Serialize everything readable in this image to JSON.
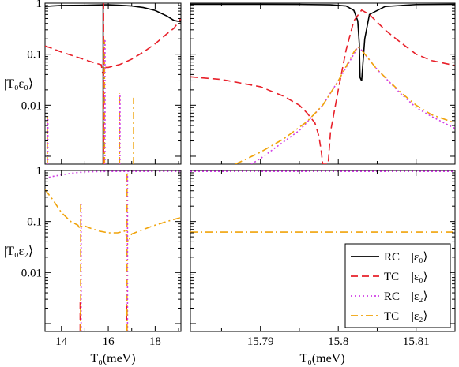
{
  "chart_data": {
    "type": "line",
    "layout": "2x2 panels",
    "ylabels": {
      "top": "|T₀ε₀⟩",
      "bottom": "|T₀ε₂⟩"
    },
    "xlabel": "T₀(meV)",
    "yscale": "log",
    "ylim": [
      0.0007,
      1.0
    ],
    "y_ticks": [
      {
        "value": 1,
        "label": "1"
      },
      {
        "value": 0.1,
        "label": "0.1"
      },
      {
        "value": 0.01,
        "label": "0.01"
      }
    ],
    "left_xlim": [
      13.3,
      19.1
    ],
    "left_x_ticks": [
      {
        "value": 14,
        "label": "14"
      },
      {
        "value": 16,
        "label": "16"
      },
      {
        "value": 18,
        "label": "18"
      }
    ],
    "right_xlim": [
      15.781,
      15.815
    ],
    "right_x_ticks": [
      {
        "value": 15.79,
        "label": "15.79"
      },
      {
        "value": 15.8,
        "label": "15.8"
      },
      {
        "value": 15.81,
        "label": "15.81"
      }
    ],
    "legend": {
      "placement": "bottom-right",
      "entries": [
        {
          "method": "RC",
          "state": "|ε₀⟩",
          "color": "#000000",
          "dash": "solid"
        },
        {
          "method": "TC",
          "state": "|ε₀⟩",
          "color": "#e8202a",
          "dash": "dashed"
        },
        {
          "method": "RC",
          "state": "|ε₂⟩",
          "color": "#d13fe6",
          "dash": "dotted"
        },
        {
          "method": "TC",
          "state": "|ε₂⟩",
          "color": "#f0a30a",
          "dash": "dashdot"
        }
      ]
    },
    "panels": [
      {
        "id": "top-left",
        "series": [
          {
            "legend_index": 0,
            "points": [
              [
                13.3,
                0.86
              ],
              [
                13.6,
                0.88
              ],
              [
                14.0,
                0.9
              ],
              [
                14.5,
                0.905
              ],
              [
                15.0,
                0.91
              ],
              [
                15.5,
                0.92
              ],
              [
                15.78,
                0.93
              ],
              [
                16.0,
                0.93
              ],
              [
                16.5,
                0.91
              ],
              [
                17.0,
                0.88
              ],
              [
                17.5,
                0.82
              ],
              [
                18.0,
                0.72
              ],
              [
                18.5,
                0.56
              ],
              [
                18.8,
                0.46
              ],
              [
                19.1,
                0.43
              ]
            ]
          },
          {
            "legend_index": 1,
            "points": [
              [
                13.3,
                0.145
              ],
              [
                13.6,
                0.13
              ],
              [
                14.0,
                0.11
              ],
              [
                14.5,
                0.093
              ],
              [
                15.0,
                0.078
              ],
              [
                15.4,
                0.068
              ],
              [
                15.7,
                0.062
              ],
              [
                15.75,
                0.045
              ],
              [
                15.79,
                0.04
              ],
              [
                15.83,
                0.055
              ],
              [
                16.0,
                0.055
              ],
              [
                16.5,
                0.063
              ],
              [
                17.0,
                0.08
              ],
              [
                17.5,
                0.11
              ],
              [
                18.0,
                0.16
              ],
              [
                18.5,
                0.25
              ],
              [
                18.8,
                0.32
              ],
              [
                19.1,
                0.5
              ]
            ]
          }
        ]
      },
      {
        "id": "top-right",
        "series": [
          {
            "legend_index": 0,
            "points": [
              [
                15.781,
                0.95
              ],
              [
                15.79,
                0.95
              ],
              [
                15.795,
                0.945
              ],
              [
                15.799,
                0.93
              ],
              [
                15.801,
                0.88
              ],
              [
                15.802,
                0.72
              ],
              [
                15.8025,
                0.45
              ],
              [
                15.8027,
                0.16
              ],
              [
                15.8028,
                0.035
              ],
              [
                15.803,
                0.03
              ],
              [
                15.8034,
                0.2
              ],
              [
                15.804,
                0.6
              ],
              [
                15.806,
                0.86
              ],
              [
                15.81,
                0.94
              ],
              [
                15.815,
                0.95
              ]
            ]
          },
          {
            "legend_index": 1,
            "points": [
              [
                15.781,
                0.036
              ],
              [
                15.785,
                0.032
              ],
              [
                15.79,
                0.023
              ],
              [
                15.793,
                0.015
              ],
              [
                15.795,
                0.01
              ],
              [
                15.796,
                0.007
              ],
              [
                15.797,
                0.0045
              ],
              [
                15.7975,
                0.0025
              ],
              [
                15.7978,
                0.0013
              ],
              [
                15.798,
                0.0007
              ],
              [
                15.7987,
                0.0007
              ],
              [
                15.799,
                0.003
              ],
              [
                15.8,
                0.02
              ],
              [
                15.801,
                0.12
              ],
              [
                15.802,
                0.45
              ],
              [
                15.803,
                0.73
              ],
              [
                15.804,
                0.6
              ],
              [
                15.806,
                0.3
              ],
              [
                15.808,
                0.17
              ],
              [
                15.81,
                0.1
              ],
              [
                15.812,
                0.075
              ],
              [
                15.815,
                0.06
              ]
            ]
          },
          {
            "legend_index": 2,
            "points": [
              [
                15.7888,
                0.0007
              ],
              [
                15.79,
                0.0009
              ],
              [
                15.792,
                0.0015
              ],
              [
                15.795,
                0.0032
              ],
              [
                15.798,
                0.01
              ],
              [
                15.8,
                0.03
              ],
              [
                15.802,
                0.1
              ],
              [
                15.8025,
                0.14
              ],
              [
                15.803,
                0.12
              ],
              [
                15.805,
                0.05
              ],
              [
                15.808,
                0.017
              ],
              [
                15.81,
                0.009
              ],
              [
                15.812,
                0.006
              ],
              [
                15.815,
                0.0035
              ]
            ]
          },
          {
            "legend_index": 3,
            "points": [
              [
                15.7868,
                0.0007
              ],
              [
                15.79,
                0.0012
              ],
              [
                15.793,
                0.0022
              ],
              [
                15.796,
                0.0048
              ],
              [
                15.798,
                0.01
              ],
              [
                15.8,
                0.03
              ],
              [
                15.802,
                0.11
              ],
              [
                15.8025,
                0.14
              ],
              [
                15.803,
                0.12
              ],
              [
                15.805,
                0.05
              ],
              [
                15.808,
                0.018
              ],
              [
                15.81,
                0.01
              ],
              [
                15.812,
                0.0065
              ],
              [
                15.815,
                0.0045
              ]
            ]
          }
        ]
      },
      {
        "id": "bottom-left",
        "series": [
          {
            "legend_index": 2,
            "points": [
              [
                13.3,
                0.7
              ],
              [
                13.6,
                0.76
              ],
              [
                14.0,
                0.82
              ],
              [
                14.5,
                0.89
              ],
              [
                14.75,
                0.92
              ],
              [
                14.85,
                0.92
              ],
              [
                15.0,
                0.94
              ],
              [
                16.0,
                0.96
              ],
              [
                17.0,
                0.96
              ],
              [
                18.0,
                0.96
              ],
              [
                19.1,
                0.96
              ]
            ]
          },
          {
            "legend_index": 3,
            "points": [
              [
                13.3,
                0.42
              ],
              [
                13.6,
                0.28
              ],
              [
                14.0,
                0.15
              ],
              [
                14.4,
                0.1
              ],
              [
                14.7,
                0.085
              ],
              [
                14.8,
                0.072
              ],
              [
                14.9,
                0.085
              ],
              [
                15.2,
                0.075
              ],
              [
                15.6,
                0.065
              ],
              [
                16.0,
                0.06
              ],
              [
                16.4,
                0.06
              ],
              [
                16.7,
                0.065
              ],
              [
                16.85,
                0.04
              ],
              [
                17.0,
                0.057
              ],
              [
                17.5,
                0.07
              ],
              [
                18.0,
                0.085
              ],
              [
                18.5,
                0.1
              ],
              [
                19.1,
                0.12
              ]
            ]
          }
        ]
      },
      {
        "id": "bottom-right",
        "series": [
          {
            "legend_index": 2,
            "points": [
              [
                15.781,
                0.96
              ],
              [
                15.815,
                0.96
              ]
            ]
          },
          {
            "legend_index": 3,
            "points": [
              [
                15.781,
                0.062
              ],
              [
                15.815,
                0.062
              ]
            ]
          }
        ]
      }
    ],
    "spikes": [
      {
        "panel": "top-left",
        "x": 13.4,
        "y_top": 0.006,
        "legend_index": 3
      },
      {
        "panel": "top-left",
        "x": 13.42,
        "y_top": 0.006,
        "legend_index": 2
      },
      {
        "panel": "top-left",
        "x": 15.78,
        "y_top": 1.0,
        "legend_index": 0
      },
      {
        "panel": "top-left",
        "x": 15.8,
        "y_top": 1.0,
        "legend_index": 1
      },
      {
        "panel": "top-left",
        "x": 15.84,
        "y_top": 0.19,
        "legend_index": 3
      },
      {
        "panel": "top-left",
        "x": 15.86,
        "y_top": 0.19,
        "legend_index": 2
      },
      {
        "panel": "top-left",
        "x": 16.48,
        "y_top": 0.017,
        "legend_index": 3
      },
      {
        "panel": "top-left",
        "x": 16.5,
        "y_top": 0.017,
        "legend_index": 2
      },
      {
        "panel": "top-left",
        "x": 17.08,
        "y_top": 0.014,
        "legend_index": 3
      },
      {
        "panel": "bottom-left",
        "x": 14.82,
        "y_top": 0.22,
        "legend_index": 3
      },
      {
        "panel": "bottom-left",
        "x": 14.84,
        "y_top": 0.22,
        "legend_index": 2
      },
      {
        "panel": "bottom-left",
        "x": 14.8,
        "y_top": 0.0026,
        "legend_index": 1
      },
      {
        "panel": "bottom-left",
        "x": 14.82,
        "y_top": 0.0026,
        "legend_index": 3
      },
      {
        "panel": "bottom-left",
        "x": 16.8,
        "y_top": 0.88,
        "legend_index": 3
      },
      {
        "panel": "bottom-left",
        "x": 16.82,
        "y_top": 0.88,
        "legend_index": 2
      },
      {
        "panel": "bottom-left",
        "x": 16.78,
        "y_top": 0.0024,
        "legend_index": 1
      },
      {
        "panel": "bottom-left",
        "x": 16.8,
        "y_top": 0.0024,
        "legend_index": 3
      }
    ]
  }
}
